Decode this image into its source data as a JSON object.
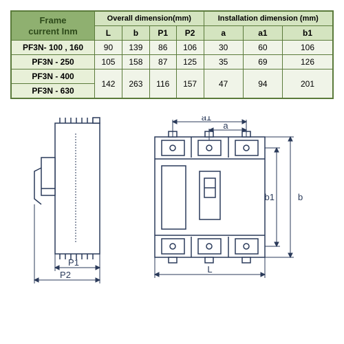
{
  "table": {
    "corner": "Frame\ncurrent Inm",
    "group1": "Overall dimension(mm)",
    "group2": "Installation dimension (mm)",
    "cols": [
      "L",
      "b",
      "P1",
      "P2",
      "a",
      "a1",
      "b1"
    ],
    "rows": [
      {
        "label": "PF3N- 100 , 160",
        "vals": [
          "90",
          "139",
          "86",
          "106",
          "30",
          "60",
          "106"
        ],
        "merged": false
      },
      {
        "label": "PF3N - 250",
        "vals": [
          "105",
          "158",
          "87",
          "125",
          "35",
          "69",
          "126"
        ],
        "merged": false
      },
      {
        "label": "PF3N - 400",
        "vals": [
          "142",
          "263",
          "116",
          "157",
          "47",
          "94",
          "201"
        ],
        "merged": "start"
      },
      {
        "label": "PF3N - 630",
        "vals": [],
        "merged": "skip"
      }
    ]
  },
  "diagram": {
    "labels": {
      "P1": "P1",
      "P2": "P2",
      "L": "L",
      "a": "a",
      "a1": "a1",
      "b": "b",
      "b1": "b1"
    },
    "colors": {
      "stroke": "#2a3a5a",
      "text": "#2a3a5a",
      "fill": "#fff"
    }
  }
}
